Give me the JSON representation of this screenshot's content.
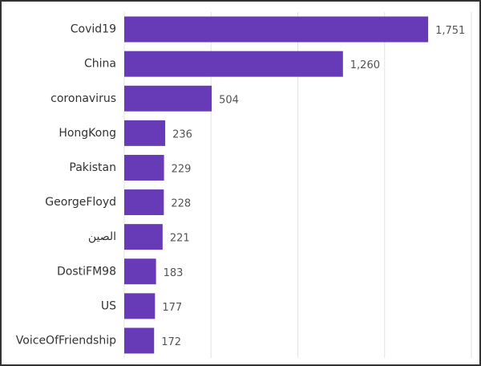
{
  "chart_data": {
    "type": "bar",
    "orientation": "horizontal",
    "categories": [
      "Covid19",
      "China",
      "coronavirus",
      "HongKong",
      "Pakistan",
      "GeorgeFloyd",
      "الصين",
      "DostiFM98",
      "US",
      "VoiceOfFriendship"
    ],
    "values": [
      1751,
      1260,
      504,
      236,
      229,
      228,
      221,
      183,
      177,
      172
    ],
    "value_labels": [
      "1,751",
      "1,260",
      "504",
      "236",
      "229",
      "228",
      "221",
      "183",
      "177",
      "172"
    ],
    "color": "#673ab7",
    "xlim": [
      0,
      2000
    ],
    "xticks": [
      0,
      500,
      1000,
      1500,
      2000
    ],
    "grid": true
  }
}
